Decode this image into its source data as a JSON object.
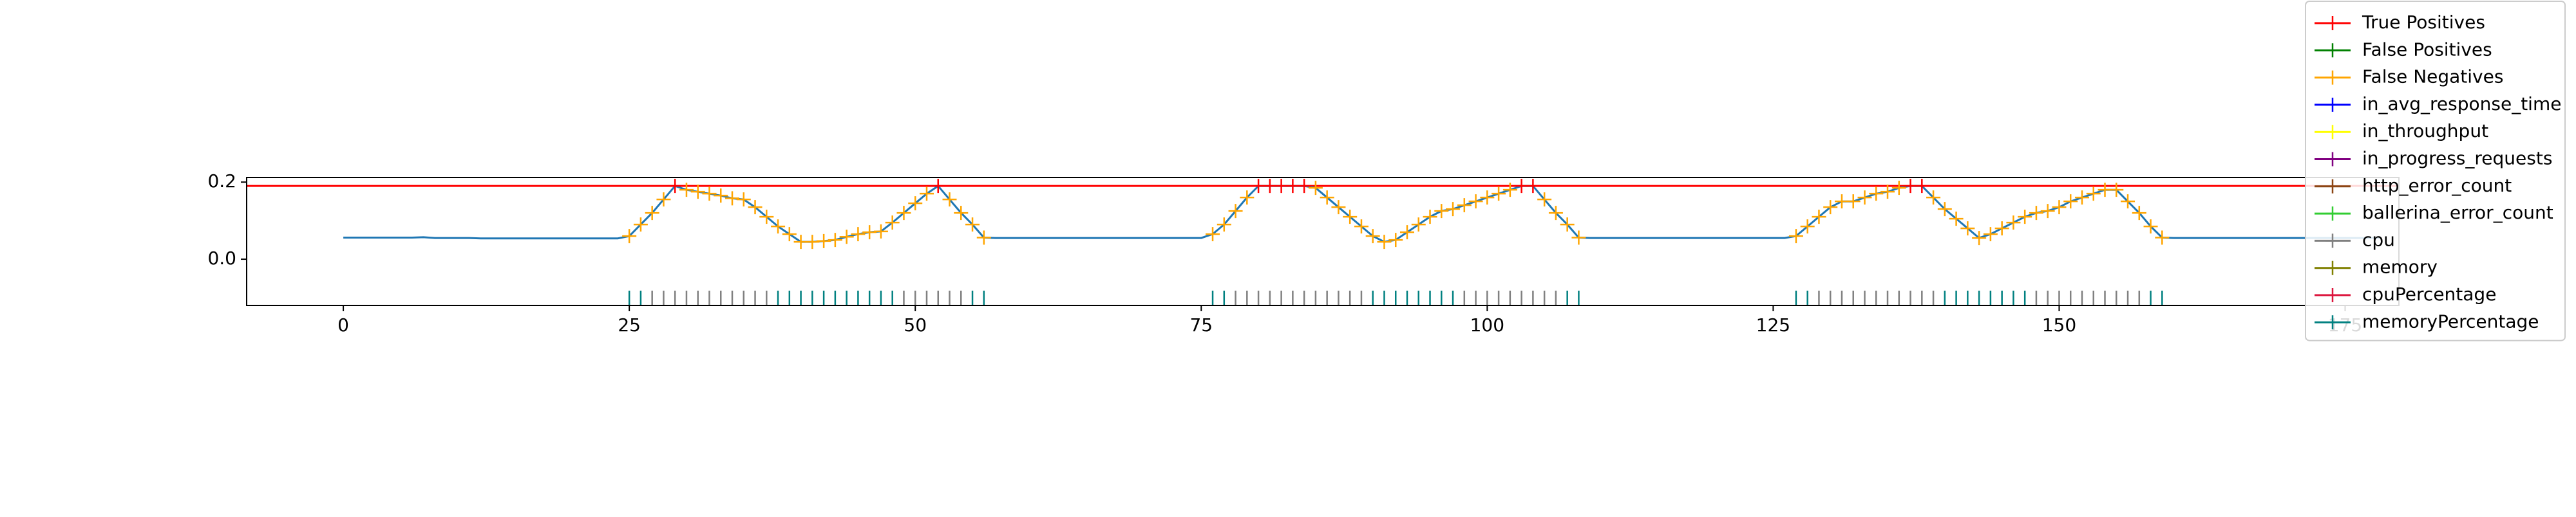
{
  "chart_data": {
    "type": "line",
    "xlim": [
      -8.45,
      179.7
    ],
    "ylim": [
      -0.12,
      0.212
    ],
    "xticks": [
      0,
      25,
      50,
      75,
      100,
      125,
      150,
      175
    ],
    "yticks": [
      {
        "value": 0,
        "label": "0.0"
      },
      0.2
    ],
    "legend": "upper right",
    "hlines": [
      {
        "value": 0.19,
        "color": "#ff0000"
      }
    ],
    "line": {
      "color": "#1f77b4",
      "x": [
        0,
        1,
        2,
        3,
        4,
        5,
        6,
        7,
        8,
        9,
        10,
        11,
        12,
        13,
        14,
        15,
        16,
        17,
        18,
        19,
        20,
        21,
        22,
        23,
        24,
        25,
        26,
        27,
        28,
        29,
        30,
        31,
        32,
        33,
        34,
        35,
        36,
        37,
        38,
        39,
        40,
        41,
        42,
        43,
        44,
        45,
        46,
        47,
        48,
        49,
        50,
        51,
        52,
        53,
        54,
        55,
        56,
        57,
        58,
        59,
        60,
        61,
        62,
        63,
        64,
        65,
        66,
        67,
        68,
        69,
        70,
        71,
        72,
        73,
        74,
        75,
        76,
        77,
        78,
        79,
        80,
        81,
        82,
        83,
        84,
        85,
        86,
        87,
        88,
        89,
        90,
        91,
        92,
        93,
        94,
        95,
        96,
        97,
        98,
        99,
        100,
        101,
        102,
        103,
        104,
        105,
        106,
        107,
        108,
        109,
        110,
        111,
        112,
        113,
        114,
        115,
        116,
        117,
        118,
        119,
        120,
        121,
        122,
        123,
        124,
        125,
        126,
        127,
        128,
        129,
        130,
        131,
        132,
        133,
        134,
        135,
        136,
        137,
        138,
        139,
        140,
        141,
        142,
        143,
        144,
        145,
        146,
        147,
        148,
        149,
        150,
        151,
        152,
        153,
        154,
        155,
        156,
        157,
        158,
        159,
        160,
        161,
        162,
        163,
        164,
        165,
        166,
        167,
        168,
        169,
        170,
        171,
        172,
        173,
        174,
        175,
        176,
        177,
        178
      ],
      "values": [
        0.056,
        0.056,
        0.056,
        0.056,
        0.056,
        0.056,
        0.056,
        0.057,
        0.055,
        0.055,
        0.055,
        0.055,
        0.054,
        0.054,
        0.054,
        0.054,
        0.054,
        0.054,
        0.054,
        0.054,
        0.054,
        0.054,
        0.054,
        0.054,
        0.054,
        0.06,
        0.09,
        0.12,
        0.155,
        0.19,
        0.18,
        0.175,
        0.17,
        0.165,
        0.158,
        0.155,
        0.135,
        0.11,
        0.085,
        0.065,
        0.045,
        0.045,
        0.047,
        0.05,
        0.058,
        0.065,
        0.07,
        0.072,
        0.095,
        0.12,
        0.145,
        0.17,
        0.19,
        0.155,
        0.12,
        0.09,
        0.056,
        0.055,
        0.055,
        0.055,
        0.055,
        0.055,
        0.055,
        0.055,
        0.055,
        0.055,
        0.055,
        0.055,
        0.055,
        0.055,
        0.055,
        0.055,
        0.055,
        0.055,
        0.055,
        0.055,
        0.065,
        0.09,
        0.125,
        0.16,
        0.19,
        0.19,
        0.19,
        0.19,
        0.19,
        0.185,
        0.16,
        0.135,
        0.11,
        0.085,
        0.06,
        0.045,
        0.05,
        0.07,
        0.09,
        0.11,
        0.125,
        0.13,
        0.14,
        0.15,
        0.16,
        0.17,
        0.18,
        0.19,
        0.19,
        0.155,
        0.12,
        0.09,
        0.056,
        0.055,
        0.055,
        0.055,
        0.055,
        0.055,
        0.055,
        0.055,
        0.055,
        0.055,
        0.055,
        0.055,
        0.055,
        0.055,
        0.055,
        0.055,
        0.055,
        0.055,
        0.055,
        0.06,
        0.085,
        0.11,
        0.135,
        0.15,
        0.15,
        0.16,
        0.17,
        0.175,
        0.185,
        0.19,
        0.19,
        0.16,
        0.13,
        0.105,
        0.08,
        0.055,
        0.065,
        0.08,
        0.095,
        0.11,
        0.12,
        0.125,
        0.135,
        0.15,
        0.16,
        0.17,
        0.18,
        0.18,
        0.15,
        0.12,
        0.085,
        0.056,
        0.055,
        0.055,
        0.055,
        0.055,
        0.055,
        0.055,
        0.055,
        0.055,
        0.055,
        0.055,
        0.055,
        0.055,
        0.055,
        0.055,
        0.055,
        0.055,
        0.055,
        0.055,
        0.055
      ]
    },
    "series": [
      {
        "name": "True Positives",
        "color": "#ff0000",
        "marker": "+",
        "x": [
          29,
          52,
          80,
          81,
          82,
          83,
          84,
          103,
          104,
          137,
          138
        ],
        "values": [
          0.19,
          0.19,
          0.19,
          0.19,
          0.19,
          0.19,
          0.19,
          0.19,
          0.19,
          0.19,
          0.19
        ]
      },
      {
        "name": "False Positives",
        "color": "#008000",
        "marker": "+",
        "x": [],
        "values": []
      },
      {
        "name": "False Negatives",
        "color": "#ffa500",
        "marker": "+",
        "x": [
          25,
          26,
          27,
          28,
          30,
          31,
          32,
          33,
          34,
          35,
          36,
          37,
          38,
          39,
          40,
          41,
          42,
          43,
          44,
          45,
          46,
          47,
          48,
          49,
          50,
          51,
          53,
          54,
          55,
          56,
          76,
          77,
          78,
          79,
          85,
          86,
          87,
          88,
          89,
          90,
          91,
          92,
          93,
          94,
          95,
          96,
          97,
          98,
          99,
          100,
          101,
          102,
          105,
          106,
          107,
          108,
          127,
          128,
          129,
          130,
          131,
          132,
          133,
          134,
          135,
          136,
          139,
          140,
          141,
          142,
          143,
          144,
          145,
          146,
          147,
          148,
          149,
          150,
          151,
          152,
          153,
          154,
          155,
          156,
          157,
          158,
          159
        ],
        "values": [
          0.06,
          0.09,
          0.12,
          0.155,
          0.18,
          0.175,
          0.17,
          0.165,
          0.158,
          0.155,
          0.135,
          0.11,
          0.085,
          0.065,
          0.045,
          0.045,
          0.047,
          0.05,
          0.058,
          0.065,
          0.07,
          0.072,
          0.095,
          0.12,
          0.145,
          0.17,
          0.155,
          0.12,
          0.09,
          0.056,
          0.065,
          0.09,
          0.125,
          0.16,
          0.185,
          0.16,
          0.135,
          0.11,
          0.085,
          0.06,
          0.045,
          0.05,
          0.07,
          0.09,
          0.11,
          0.125,
          0.13,
          0.14,
          0.15,
          0.16,
          0.17,
          0.18,
          0.155,
          0.12,
          0.09,
          0.056,
          0.06,
          0.085,
          0.11,
          0.135,
          0.15,
          0.15,
          0.16,
          0.17,
          0.175,
          0.185,
          0.16,
          0.13,
          0.105,
          0.08,
          0.055,
          0.065,
          0.08,
          0.095,
          0.11,
          0.12,
          0.125,
          0.135,
          0.15,
          0.16,
          0.17,
          0.18,
          0.18,
          0.15,
          0.12,
          0.085,
          0.056
        ]
      },
      {
        "name": "in_avg_response_time",
        "color": "#0000ff",
        "marker": "+",
        "x": [],
        "values": []
      },
      {
        "name": "in_throughput",
        "color": "#ffff00",
        "marker": "+",
        "x": [],
        "values": []
      },
      {
        "name": "in_progress_requests",
        "color": "#800080",
        "marker": "+",
        "x": [],
        "values": []
      },
      {
        "name": "http_error_count",
        "color": "#8b4513",
        "marker": "+",
        "x": [],
        "values": []
      },
      {
        "name": "ballerina_error_count",
        "color": "#32cd32",
        "marker": "+",
        "x": [],
        "values": []
      },
      {
        "name": "cpu",
        "color": "#808080",
        "marker": "|",
        "x": [
          27,
          28,
          29,
          30,
          31,
          32,
          33,
          34,
          35,
          36,
          37,
          49,
          50,
          51,
          52,
          53,
          54,
          78,
          79,
          80,
          81,
          82,
          83,
          84,
          85,
          86,
          87,
          88,
          89,
          98,
          99,
          100,
          101,
          102,
          103,
          104,
          105,
          106,
          129,
          130,
          131,
          132,
          133,
          134,
          135,
          136,
          137,
          138,
          139,
          148,
          149,
          150,
          151,
          152,
          153,
          154,
          155,
          156,
          157
        ],
        "values": [
          -0.1,
          -0.1,
          -0.1,
          -0.1,
          -0.1,
          -0.1,
          -0.1,
          -0.1,
          -0.1,
          -0.1,
          -0.1,
          -0.1,
          -0.1,
          -0.1,
          -0.1,
          -0.1,
          -0.1,
          -0.1,
          -0.1,
          -0.1,
          -0.1,
          -0.1,
          -0.1,
          -0.1,
          -0.1,
          -0.1,
          -0.1,
          -0.1,
          -0.1,
          -0.1,
          -0.1,
          -0.1,
          -0.1,
          -0.1,
          -0.1,
          -0.1,
          -0.1,
          -0.1,
          -0.1,
          -0.1,
          -0.1,
          -0.1,
          -0.1,
          -0.1,
          -0.1,
          -0.1,
          -0.1,
          -0.1,
          -0.1,
          -0.1,
          -0.1,
          -0.1,
          -0.1,
          -0.1,
          -0.1,
          -0.1,
          -0.1,
          -0.1,
          -0.1
        ]
      },
      {
        "name": "memory",
        "color": "#808000",
        "marker": "+",
        "x": [],
        "values": []
      },
      {
        "name": "cpuPercentage",
        "color": "#dc143c",
        "marker": "+",
        "x": [],
        "values": []
      },
      {
        "name": "memoryPercentage",
        "color": "#008080",
        "marker": "|",
        "x": [
          25,
          26,
          38,
          39,
          40,
          41,
          42,
          43,
          44,
          45,
          46,
          47,
          48,
          55,
          56,
          76,
          77,
          90,
          91,
          92,
          93,
          94,
          95,
          96,
          97,
          107,
          108,
          127,
          128,
          140,
          141,
          142,
          143,
          144,
          145,
          146,
          147,
          158,
          159
        ],
        "values": [
          -0.1,
          -0.1,
          -0.1,
          -0.1,
          -0.1,
          -0.1,
          -0.1,
          -0.1,
          -0.1,
          -0.1,
          -0.1,
          -0.1,
          -0.1,
          -0.1,
          -0.1,
          -0.1,
          -0.1,
          -0.1,
          -0.1,
          -0.1,
          -0.1,
          -0.1,
          -0.1,
          -0.1,
          -0.1,
          -0.1,
          -0.1,
          -0.1,
          -0.1,
          -0.1,
          -0.1,
          -0.1,
          -0.1,
          -0.1,
          -0.1,
          -0.1,
          -0.1,
          -0.1,
          -0.1
        ]
      }
    ]
  }
}
